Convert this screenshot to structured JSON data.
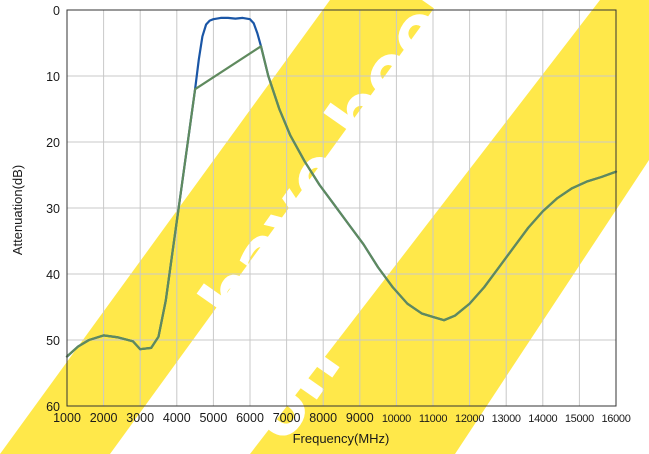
{
  "chart_data": {
    "type": "line",
    "title": "",
    "xlabel": "Frequency(MHz)",
    "ylabel": "Attenuation(dB)",
    "xlim": [
      1000,
      16000
    ],
    "ylim": [
      0,
      60
    ],
    "y_inverted": true,
    "x_ticks": [
      1000,
      2000,
      3000,
      4000,
      5000,
      6000,
      7000,
      8000,
      9000,
      10000,
      11000,
      12000,
      13000,
      14000,
      15000,
      16000
    ],
    "x_tick_labels": [
      "1000",
      "2000",
      "3000",
      "4000",
      "5000",
      "6000",
      "7000",
      "8000",
      "9000",
      "10000",
      "11000",
      "12000",
      "13000",
      "14000",
      "15000",
      "16000"
    ],
    "y_ticks": [
      0,
      10,
      20,
      30,
      40,
      50,
      60
    ],
    "y_tick_labels": [
      "0",
      "10",
      "20",
      "30",
      "40",
      "50",
      "60"
    ],
    "grid": true,
    "series": [
      {
        "color": "#1a56a6",
        "x": [
          1000,
          1300,
          1600,
          2000,
          2400,
          2800,
          3000,
          3300,
          3500,
          3700,
          3900,
          4100,
          4300,
          4500,
          4600,
          4700,
          4800,
          4900,
          5000,
          5200,
          5400,
          5600,
          5800,
          6000,
          6100,
          6200,
          6300,
          6500,
          6800,
          7100,
          7500,
          7900,
          8300,
          8700,
          9100,
          9500,
          9900,
          10300,
          10700,
          11000,
          11300,
          11600,
          12000,
          12400,
          12800,
          13200,
          13600,
          14000,
          14400,
          14800,
          15200,
          15600,
          16000
        ],
        "y": [
          52.5,
          51.0,
          50.0,
          49.3,
          49.6,
          50.2,
          51.4,
          51.2,
          49.5,
          44.0,
          36.0,
          28.0,
          20.0,
          12.0,
          7.5,
          4.0,
          2.2,
          1.6,
          1.4,
          1.2,
          1.2,
          1.3,
          1.2,
          1.4,
          2.0,
          3.5,
          5.5,
          10.0,
          15.0,
          19.0,
          23.0,
          26.5,
          29.5,
          32.5,
          35.5,
          39.0,
          42.0,
          44.5,
          46.0,
          46.5,
          47.0,
          46.3,
          44.5,
          42.0,
          39.0,
          36.0,
          33.0,
          30.5,
          28.5,
          27.0,
          26.0,
          25.3,
          24.5
        ]
      },
      {
        "color": "#5f8a5e",
        "x": [
          1000,
          1300,
          1600,
          2000,
          2400,
          2800,
          3000,
          3300,
          3500,
          3700,
          3900,
          4100,
          4300,
          4500,
          6300,
          6500,
          6800,
          7100,
          7500,
          7900,
          8300,
          8700,
          9100,
          9500,
          9900,
          10300,
          10700,
          11000,
          11300,
          11600,
          12000,
          12400,
          12800,
          13200,
          13600,
          14000,
          14400,
          14800,
          15200,
          15600,
          16000
        ],
        "y": [
          52.5,
          51.0,
          50.0,
          49.3,
          49.6,
          50.2,
          51.4,
          51.2,
          49.5,
          44.0,
          36.0,
          28.0,
          20.0,
          12.0,
          5.5,
          10.0,
          15.0,
          19.0,
          23.0,
          26.5,
          29.5,
          32.5,
          35.5,
          39.0,
          42.0,
          44.5,
          46.0,
          46.5,
          47.0,
          46.3,
          44.5,
          42.0,
          39.0,
          36.0,
          33.0,
          30.5,
          28.5,
          27.0,
          26.0,
          25.3,
          24.5
        ]
      }
    ]
  },
  "colors": {
    "grid": "#c8c8c8",
    "frame": "#333333",
    "watermark": "#ffe84a"
  },
  "watermark": {
    "texts": [
      "have been",
      "on"
    ]
  }
}
